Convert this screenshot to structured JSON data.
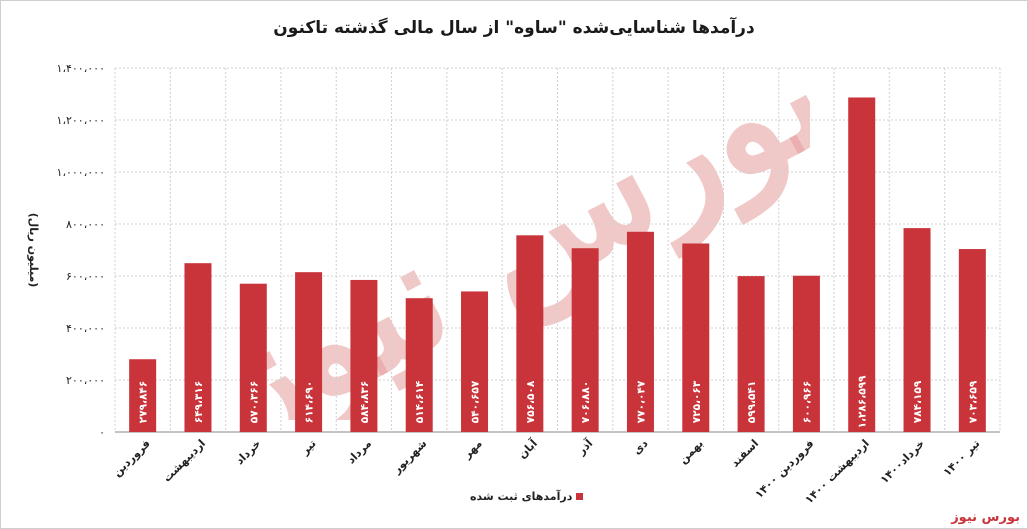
{
  "chart_data": {
    "type": "bar",
    "title": "درآمدها شناسایی‌شده \"ساوه\" از سال مالی گذشته تاکنون",
    "ylabel": "(میلیون ریال)",
    "xlabel": "",
    "ylim": [
      0,
      1400000
    ],
    "yticks": [
      0,
      200000,
      400000,
      600000,
      800000,
      1000000,
      1200000,
      1400000
    ],
    "ytick_labels": [
      "۰",
      "۲۰۰،۰۰۰",
      "۴۰۰،۰۰۰",
      "۶۰۰،۰۰۰",
      "۸۰۰،۰۰۰",
      "۱،۰۰۰،۰۰۰",
      "۱،۲۰۰،۰۰۰",
      "۱،۴۰۰،۰۰۰"
    ],
    "grid": true,
    "legend_position": "bottom",
    "bar_color": "#c8343a",
    "categories": [
      "فروردین",
      "اردیبهشت",
      "خرداد",
      "تیر",
      "مرداد",
      "شهریور",
      "مهر",
      "آبان",
      "آذر",
      "دی",
      "بهمن",
      "اسفند",
      "فروردین ۱۴۰۰",
      "اردیبهشت ۱۴۰۰",
      "خرداد۱۴۰۰",
      "تیر ۱۴۰۰"
    ],
    "series": [
      {
        "name": "درآمدهای ثبت شده",
        "values": [
          279846,
          649316,
          570366,
          614690,
          584836,
          514614,
          540657,
          756508,
          706880,
          770047,
          725063,
          599541,
          600966,
          1286599,
          784159,
          703659
        ],
        "value_labels": [
          "۲۷۹،۸۴۶",
          "۶۴۹،۳۱۶",
          "۵۷۰،۳۶۶",
          "۶۱۴،۶۹۰",
          "۵۸۴،۸۳۶",
          "۵۱۴،۶۱۴",
          "۵۴۰،۶۵۷",
          "۷۵۶،۵۰۸",
          "۷۰۶،۸۸۰",
          "۷۷۰،۰۴۷",
          "۷۲۵،۰۶۳",
          "۵۹۹،۵۴۱",
          "۶۰۰،۹۶۶",
          "۱،۲۸۶،۵۹۹",
          "۷۸۴،۱۵۹",
          "۷۰۳،۶۵۹"
        ]
      }
    ]
  },
  "watermark_text": "بورس نیوز",
  "brand": "بورس نیوز"
}
